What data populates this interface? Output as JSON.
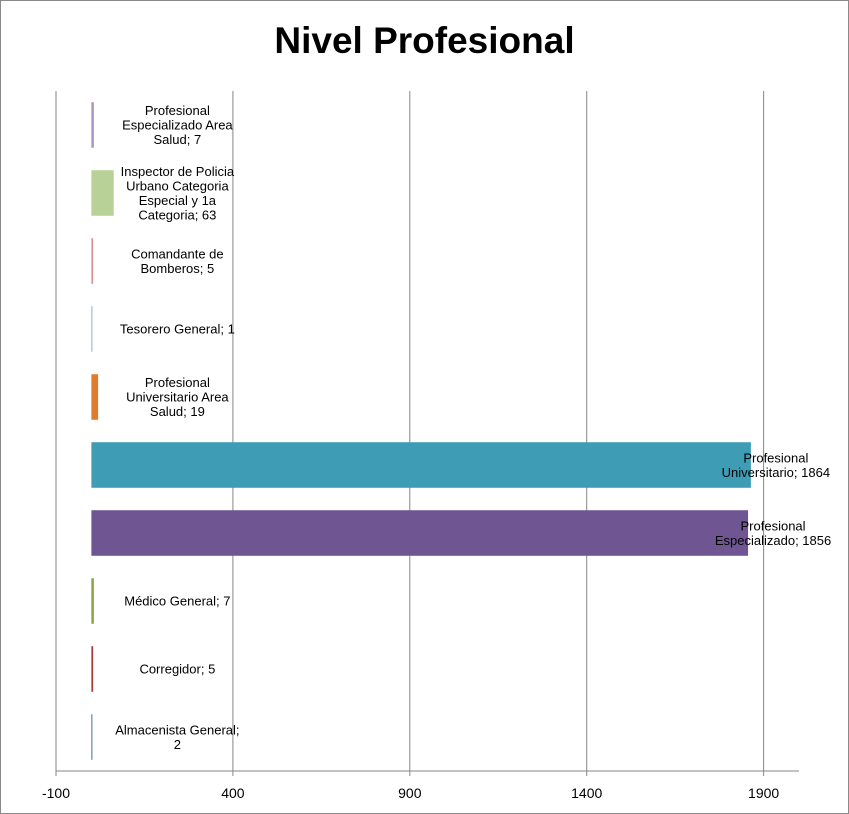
{
  "chart_data": {
    "type": "bar",
    "orientation": "horizontal",
    "title": "Nivel Profesional",
    "xlim": [
      -100,
      2000
    ],
    "xticks": [
      -100,
      400,
      900,
      1400,
      1900
    ],
    "grid": true,
    "legend": "none",
    "categories": [
      "Almacenista General",
      "Corregidor",
      "Médico General",
      "Profesional Especializado",
      "Profesional Universitario",
      "Profesional Universitario Area Salud",
      "Tesorero General",
      "Comandante de Bomberos",
      "Inspector de Policia Urbano Categoria Especial y 1a Categoria",
      "Profesional Especializado Area Salud"
    ],
    "values": [
      2,
      5,
      7,
      1856,
      1864,
      19,
      1,
      5,
      63,
      7
    ],
    "data_labels": [
      [
        "Almacenista General;",
        "2"
      ],
      [
        "Corregidor; 5"
      ],
      [
        "Médico General; 7"
      ],
      [
        "Profesional",
        "Especializado; 1856"
      ],
      [
        "Profesional",
        "Universitario; 1864"
      ],
      [
        "Profesional",
        "Universitario Area",
        "Salud; 19"
      ],
      [
        "Tesorero General; 1"
      ],
      [
        "Comandante de",
        "Bomberos; 5"
      ],
      [
        "Inspector de Policia",
        "Urbano Categoria",
        "Especial y 1a",
        "Categoria; 63"
      ],
      [
        "Profesional",
        "Especializado Area",
        "Salud; 7"
      ]
    ],
    "colors": [
      "#4a6d94",
      "#a83a3a",
      "#86a542",
      "#6f5592",
      "#3e9cb4",
      "#e07d2c",
      "#95aac8",
      "#d99294",
      "#b8d196",
      "#a895c3"
    ]
  }
}
